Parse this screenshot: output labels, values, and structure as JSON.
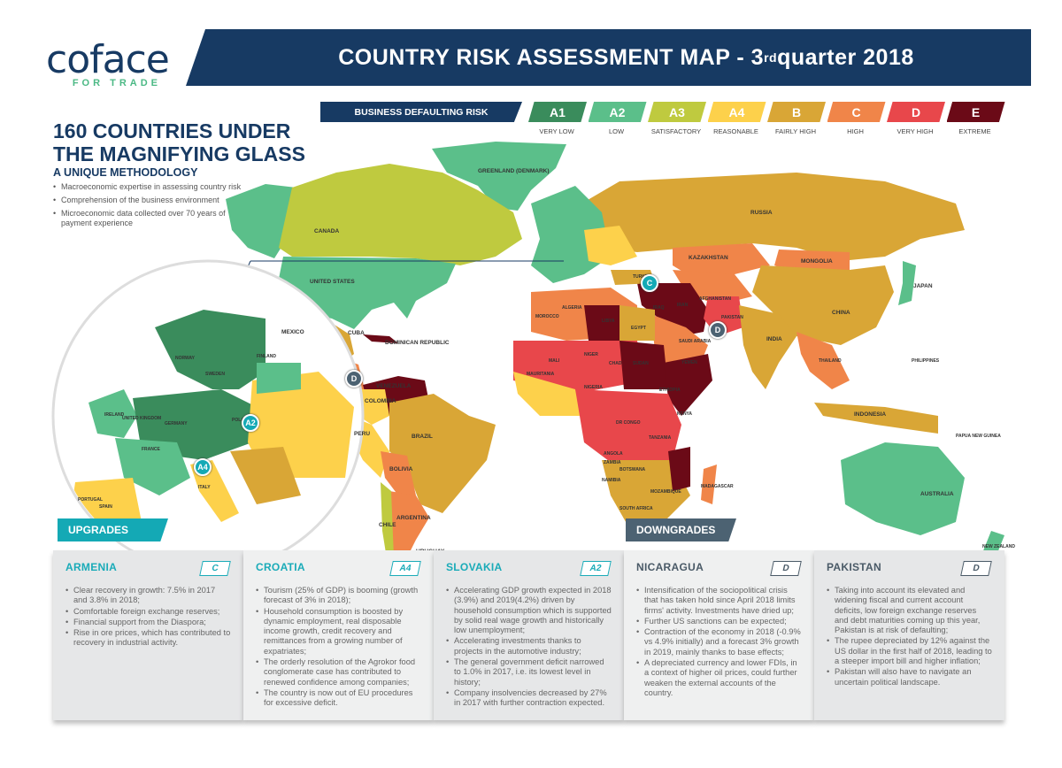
{
  "logo": {
    "word": "coface",
    "tagline": "FOR TRADE"
  },
  "header": {
    "title": "COUNTRY RISK ASSESSMENT MAP - 3",
    "title_sup": "rd",
    "title_end": " quarter 2018"
  },
  "intro": {
    "headline": "160 COUNTRIES UNDER THE MAGNIFYING GLASS",
    "subtitle": "A UNIQUE METHODOLOGY",
    "bullets": [
      "Macroeconomic expertise in assessing country risk",
      "Comprehension of the business environment",
      "Microeconomic data collected over 70 years of payment experience"
    ]
  },
  "legend": {
    "title": "BUSINESS DEFAULTING RISK",
    "levels": [
      {
        "code": "A1",
        "label": "VERY LOW",
        "color": "#3a8c5c"
      },
      {
        "code": "A2",
        "label": "LOW",
        "color": "#5bbf8a"
      },
      {
        "code": "A3",
        "label": "SATISFACTORY",
        "color": "#bfca3f"
      },
      {
        "code": "A4",
        "label": "REASONABLE",
        "color": "#fdd14b"
      },
      {
        "code": "B",
        "label": "FAIRLY HIGH",
        "color": "#d9a636"
      },
      {
        "code": "C",
        "label": "HIGH",
        "color": "#f08549"
      },
      {
        "code": "D",
        "label": "VERY HIGH",
        "color": "#e8474b"
      },
      {
        "code": "E",
        "label": "EXTREME",
        "color": "#6b0a17"
      }
    ]
  },
  "map": {
    "labels": [
      "GREENLAND (DENMARK)",
      "CANADA",
      "UNITED STATES",
      "MEXICO",
      "CUBA",
      "DOMINICAN REPUBLIC",
      "COLOMBIA",
      "VENEZUELA",
      "BRAZIL",
      "PERU",
      "BOLIVIA",
      "CHILE",
      "ARGENTINA",
      "URUGUAY",
      "RUSSIA",
      "KAZAKHSTAN",
      "MONGOLIA",
      "CHINA",
      "INDIA",
      "JAPAN",
      "AUSTRALIA",
      "INDONESIA",
      "NEW ZEALAND",
      "ALGERIA",
      "LIBYA",
      "EGYPT",
      "NIGER",
      "CHAD",
      "SUDAN",
      "NIGERIA",
      "DR CONGO",
      "ANGOLA",
      "SOUTH AFRICA",
      "MADAGASCAR",
      "ETHIOPIA",
      "SAUDI ARABIA",
      "IRAN",
      "IRAQ",
      "PAKISTAN",
      "THAILAND",
      "PHILIPPINES",
      "FINLAND",
      "NORWAY",
      "SWEDEN",
      "GERMANY",
      "FRANCE",
      "SPAIN",
      "POLAND",
      "ITALY",
      "UNITED KINGDOM",
      "IRELAND",
      "PORTUGAL",
      "MOROCCO",
      "TURKEY",
      "MALI",
      "MAURITANIA",
      "KENYA",
      "TANZANIA",
      "ZAMBIA",
      "MOZAMBIQUE",
      "NAMIBIA",
      "BOTSWANA",
      "YEMEN",
      "AFGHANISTAN",
      "PAPUA NEW GUINEA"
    ],
    "badges": [
      {
        "code": "C",
        "type": "upgrade"
      },
      {
        "code": "D",
        "type": "downgrade"
      },
      {
        "code": "D",
        "type": "downgrade"
      },
      {
        "code": "A2",
        "type": "upgrade"
      },
      {
        "code": "A4",
        "type": "upgrade"
      }
    ]
  },
  "upgrades": {
    "label": "UPGRADES",
    "color": "#14a9b5",
    "cards": [
      {
        "country": "ARMENIA",
        "rating": "C",
        "points": [
          "Clear recovery in growth: 7.5% in 2017 and 3.8% in 2018;",
          "Comfortable foreign exchange reserves;",
          "Financial support from the Diaspora;",
          "Rise in ore prices, which has contributed to recovery in industrial activity."
        ]
      },
      {
        "country": "CROATIA",
        "rating": "A4",
        "points": [
          "Tourism (25% of GDP) is booming (growth forecast of 3% in 2018);",
          "Household consumption is boosted by dynamic employment, real disposable income growth, credit recovery and remittances from a growing number of expatriates;",
          "The orderly resolution of the Agrokor food conglomerate case has contributed to renewed confidence among companies;",
          "The country is now out of EU procedures for excessive deficit."
        ]
      },
      {
        "country": "SLOVAKIA",
        "rating": "A2",
        "points": [
          "Accelerating GDP growth expected in 2018 (3.9%) and 2019(4.2%) driven by household consumption which is supported by solid real wage growth and historically low unemployment;",
          "Accelerating investments thanks to projects in the automotive industry;",
          "The general government deficit narrowed to 1.0% in 2017, i.e. its lowest level in history;",
          "Company insolvencies decreased by 27% in 2017 with further contraction expected."
        ]
      }
    ]
  },
  "downgrades": {
    "label": "DOWNGRADES",
    "color": "#4c6272",
    "cards": [
      {
        "country": "NICARAGUA",
        "rating": "D",
        "points": [
          "Intensification of the sociopolitical crisis that has taken hold since April 2018 limits firms' activity. Investments have dried up;",
          "Further US sanctions can be expected;",
          "Contraction of the economy in 2018 (-0.9% vs 4.9% initially) and a forecast 3% growth in 2019, mainly thanks to base effects;",
          "A depreciated currency and lower FDIs, in a context of higher oil prices, could further weaken the external accounts of the country."
        ]
      },
      {
        "country": "PAKISTAN",
        "rating": "D",
        "points": [
          "Taking into account its elevated and widening fiscal and current account deficits, low foreign exchange reserves and debt maturities coming up this year, Pakistan is at risk of defaulting;",
          "The rupee depreciated by 12% against the US dollar in the first half of 2018, leading to a steeper import bill and higher inflation;",
          "Pakistan will also have to navigate an uncertain political landscape."
        ]
      }
    ]
  }
}
